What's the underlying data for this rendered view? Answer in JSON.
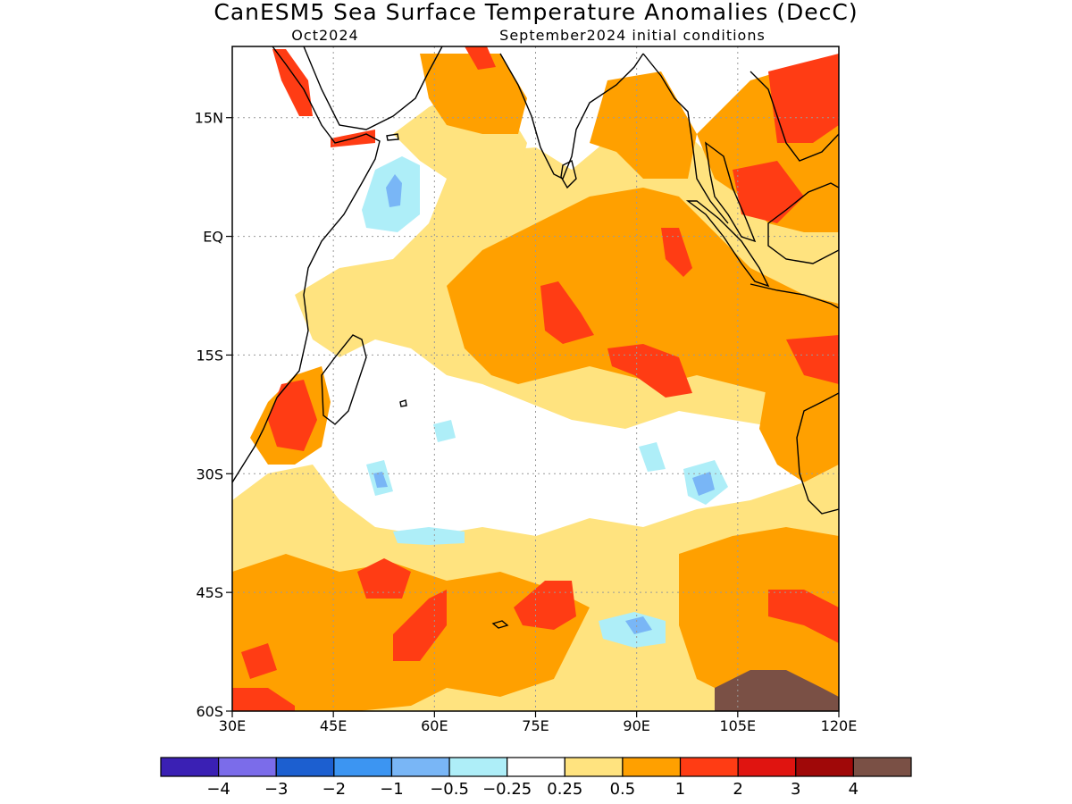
{
  "title": "CanESM5 Sea Surface Temperature Anomalies (DecC)",
  "subtitle_left": "Oct2024",
  "subtitle_right": "September2024 initial conditions",
  "map": {
    "lon_range": [
      30,
      120
    ],
    "lat_range": [
      -60,
      24
    ],
    "x_ticks": [
      {
        "value": 30,
        "label": "30E"
      },
      {
        "value": 45,
        "label": "45E"
      },
      {
        "value": 60,
        "label": "60E"
      },
      {
        "value": 75,
        "label": "75E"
      },
      {
        "value": 90,
        "label": "90E"
      },
      {
        "value": 105,
        "label": "105E"
      },
      {
        "value": 120,
        "label": "120E"
      }
    ],
    "y_ticks": [
      {
        "value": 15,
        "label": "15N"
      },
      {
        "value": 0,
        "label": "EQ"
      },
      {
        "value": -15,
        "label": "15S"
      },
      {
        "value": -30,
        "label": "30S"
      },
      {
        "value": -45,
        "label": "45S"
      },
      {
        "value": -60,
        "label": "60S"
      }
    ],
    "grid": true
  },
  "colorbar": {
    "colors": [
      "#3a20b4",
      "#7b6cea",
      "#1c5fd0",
      "#3c95f2",
      "#79b6f6",
      "#aeeef8",
      "#ffffff",
      "#ffe37f",
      "#ffa000",
      "#ff3c14",
      "#e01410",
      "#a00808",
      "#7a5045"
    ],
    "labels": [
      "−4",
      "−3",
      "−2",
      "−1",
      "−0.5",
      "−0.25",
      "0.25",
      "0.5",
      "1",
      "2",
      "3",
      "4"
    ]
  },
  "colors": {
    "weak_warm": "#ffe37f",
    "warm": "#ffa000",
    "strong_warm": "#ff3c14",
    "very_strong_warm": "#e01410",
    "extreme_warm": "#7a5045",
    "weak_cool": "#aeeef8",
    "cool": "#79b6f6"
  }
}
